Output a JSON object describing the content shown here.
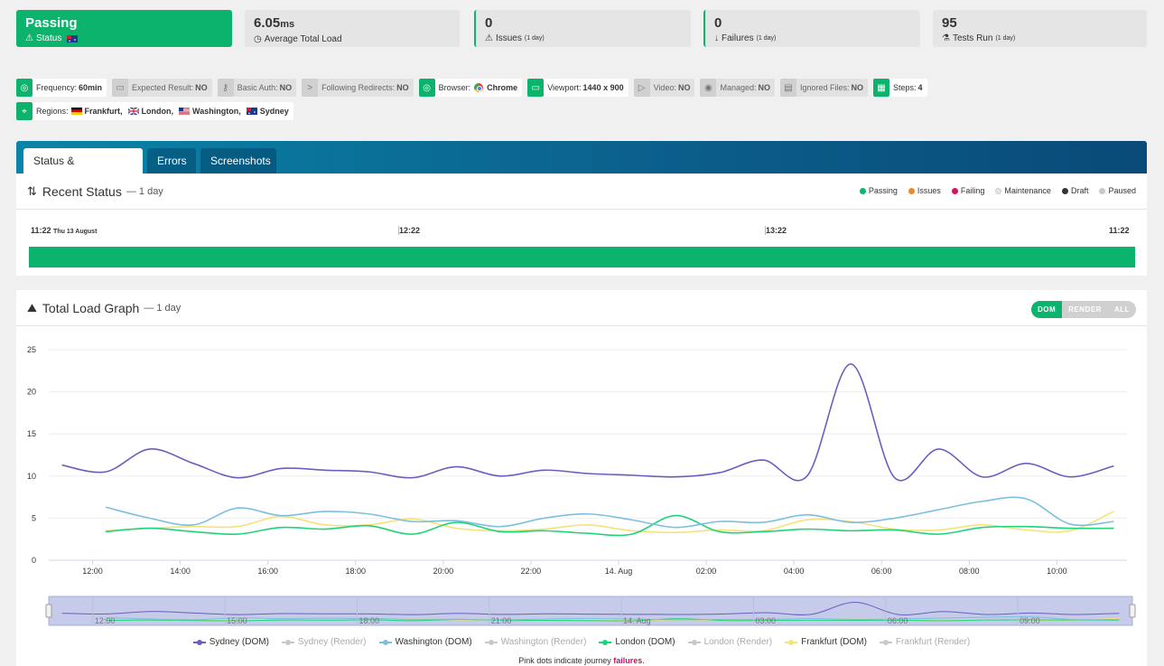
{
  "stats": {
    "status": {
      "value": "Passing",
      "label": "Status"
    },
    "load": {
      "value": "6.05",
      "unit": "ms",
      "label": "Average Total Load"
    },
    "issues": {
      "value": "0",
      "label": "Issues",
      "period": "(1 day)"
    },
    "failures": {
      "value": "0",
      "label": "Failures",
      "period": "(1 day)"
    },
    "tests": {
      "value": "95",
      "label": "Tests Run",
      "period": "(1 day)"
    }
  },
  "tags": {
    "frequency": {
      "label": "Frequency:",
      "value": "60min"
    },
    "expected": {
      "label": "Expected Result:",
      "value": "NO"
    },
    "basic_auth": {
      "label": "Basic Auth:",
      "value": "NO"
    },
    "redirects": {
      "label": "Following Redirects:",
      "value": "NO"
    },
    "browser": {
      "label": "Browser:",
      "value": "Chrome"
    },
    "viewport": {
      "label": "Viewport:",
      "value": "1440 x 900"
    },
    "video": {
      "label": "Video:",
      "value": "NO"
    },
    "managed": {
      "label": "Managed:",
      "value": "NO"
    },
    "ignored": {
      "label": "Ignored Files:",
      "value": "NO"
    },
    "steps": {
      "label": "Steps:",
      "value": "4"
    },
    "regions": {
      "label": "Regions:",
      "items": [
        "Frankfurt,",
        "London,",
        "Washington,",
        "Sydney"
      ]
    }
  },
  "tabs": [
    "Status & Performance",
    "Errors",
    "Screenshots"
  ],
  "recent_status": {
    "title": "Recent Status",
    "period": "— 1 day",
    "legend": [
      "Passing",
      "Issues",
      "Failing",
      "Maintenance",
      "Draft",
      "Paused"
    ],
    "ticks": [
      {
        "time": "11:22",
        "date": "Thu 13 August"
      },
      {
        "time": "12:22",
        "date": ""
      },
      {
        "time": "13:22",
        "date": ""
      },
      {
        "time": "11:22",
        "date": ""
      }
    ]
  },
  "load_graph": {
    "title": "Total Load Graph",
    "period": "— 1 day",
    "toggle": [
      "DOM",
      "RENDER",
      "ALL"
    ],
    "note_prefix": "Pink dots indicate journey ",
    "note_em": "failures",
    "note_suffix": "."
  },
  "colors": {
    "green": "#0bb36c",
    "sydney": "#6a5fc0",
    "washington": "#7cbfe0",
    "london": "#1fd37a",
    "frankfurt": "#f5e27a",
    "issues": "#e8892b",
    "failing": "#d4145a",
    "draft": "#333333",
    "paused": "#c8c8c8"
  },
  "chart_data": {
    "type": "line",
    "xlabels": [
      "12:00",
      "14:00",
      "16:00",
      "18:00",
      "20:00",
      "22:00",
      "14. Aug",
      "02:00",
      "04:00",
      "06:00",
      "08:00",
      "10:00"
    ],
    "navigator_labels": [
      "12:00",
      "15:00",
      "18:00",
      "21:00",
      "14. Aug",
      "03:00",
      "06:00",
      "09:00"
    ],
    "yticks": [
      0,
      5,
      10,
      15,
      20,
      25
    ],
    "ylim": [
      0,
      25
    ],
    "x_hours_from_start": true,
    "series": [
      {
        "name": "Sydney (DOM)",
        "color": "#6a5fc0",
        "visible": true,
        "points": [
          [
            -0.7,
            11.3
          ],
          [
            0.3,
            10.5
          ],
          [
            1.3,
            13.2
          ],
          [
            2.3,
            11.5
          ],
          [
            3.3,
            9.8
          ],
          [
            4.3,
            10.9
          ],
          [
            5.3,
            10.7
          ],
          [
            6.3,
            10.5
          ],
          [
            7.3,
            9.8
          ],
          [
            8.3,
            11.1
          ],
          [
            9.3,
            10.0
          ],
          [
            10.3,
            10.7
          ],
          [
            11.3,
            10.3
          ],
          [
            12.3,
            10.1
          ],
          [
            13.3,
            9.9
          ],
          [
            14.3,
            10.4
          ],
          [
            15.3,
            11.9
          ],
          [
            16.3,
            10.0
          ],
          [
            17.3,
            23.3
          ],
          [
            18.3,
            9.8
          ],
          [
            19.3,
            13.2
          ],
          [
            20.3,
            9.9
          ],
          [
            21.3,
            11.5
          ],
          [
            22.3,
            9.9
          ],
          [
            23.3,
            11.2
          ]
        ]
      },
      {
        "name": "Washington (DOM)",
        "color": "#7cbfe0",
        "visible": true,
        "points": [
          [
            0.3,
            6.3
          ],
          [
            1.3,
            5.0
          ],
          [
            2.3,
            4.2
          ],
          [
            3.3,
            6.2
          ],
          [
            4.3,
            5.3
          ],
          [
            5.3,
            5.8
          ],
          [
            6.3,
            5.5
          ],
          [
            7.3,
            4.6
          ],
          [
            8.3,
            4.7
          ],
          [
            9.3,
            4.0
          ],
          [
            10.3,
            5.0
          ],
          [
            11.3,
            5.5
          ],
          [
            12.3,
            4.8
          ],
          [
            13.3,
            3.9
          ],
          [
            14.3,
            4.6
          ],
          [
            15.3,
            4.5
          ],
          [
            16.3,
            5.4
          ],
          [
            17.3,
            4.5
          ],
          [
            18.3,
            5.0
          ],
          [
            19.3,
            6.0
          ],
          [
            20.3,
            7.0
          ],
          [
            21.3,
            7.3
          ],
          [
            22.3,
            4.3
          ],
          [
            23.3,
            4.6
          ]
        ]
      },
      {
        "name": "Washington (Render)",
        "color": "#c8c8c8",
        "visible": false,
        "points": []
      },
      {
        "name": "London (DOM)",
        "color": "#1fd37a",
        "visible": true,
        "points": [
          [
            0.3,
            3.4
          ],
          [
            1.3,
            3.8
          ],
          [
            2.3,
            3.4
          ],
          [
            3.3,
            3.1
          ],
          [
            4.3,
            3.9
          ],
          [
            5.3,
            3.7
          ],
          [
            6.3,
            4.1
          ],
          [
            7.3,
            3.1
          ],
          [
            8.3,
            4.5
          ],
          [
            9.3,
            3.4
          ],
          [
            10.3,
            3.5
          ],
          [
            11.3,
            3.2
          ],
          [
            12.3,
            3.1
          ],
          [
            13.3,
            5.3
          ],
          [
            14.3,
            3.4
          ],
          [
            15.3,
            3.4
          ],
          [
            16.3,
            3.7
          ],
          [
            17.3,
            3.5
          ],
          [
            18.3,
            3.6
          ],
          [
            19.3,
            3.1
          ],
          [
            20.3,
            3.9
          ],
          [
            21.3,
            4.0
          ],
          [
            22.3,
            3.8
          ],
          [
            23.3,
            3.8
          ]
        ]
      },
      {
        "name": "Frankfurt (DOM)",
        "color": "#f5e27a",
        "visible": true,
        "points": [
          [
            0.3,
            3.5
          ],
          [
            1.3,
            3.8
          ],
          [
            2.3,
            4.0
          ],
          [
            3.3,
            4.0
          ],
          [
            4.3,
            5.2
          ],
          [
            5.3,
            4.2
          ],
          [
            6.3,
            4.2
          ],
          [
            7.3,
            4.9
          ],
          [
            8.3,
            3.8
          ],
          [
            9.3,
            3.5
          ],
          [
            10.3,
            3.7
          ],
          [
            11.3,
            4.2
          ],
          [
            12.3,
            3.5
          ],
          [
            13.3,
            3.3
          ],
          [
            14.3,
            3.6
          ],
          [
            15.3,
            3.5
          ],
          [
            16.3,
            4.8
          ],
          [
            17.3,
            4.6
          ],
          [
            18.3,
            3.7
          ],
          [
            19.3,
            3.6
          ],
          [
            20.3,
            4.2
          ],
          [
            21.3,
            3.6
          ],
          [
            22.3,
            3.5
          ],
          [
            23.3,
            5.8
          ]
        ]
      }
    ],
    "legend": [
      {
        "name": "Sydney (DOM)",
        "color": "#6a5fc0",
        "dim": false
      },
      {
        "name": "Sydney (Render)",
        "color": "#c8c8c8",
        "dim": true
      },
      {
        "name": "Washington (DOM)",
        "color": "#7cbfe0",
        "dim": false
      },
      {
        "name": "Washington (Render)",
        "color": "#c8c8c8",
        "dim": true
      },
      {
        "name": "London (DOM)",
        "color": "#1fd37a",
        "dim": false
      },
      {
        "name": "London (Render)",
        "color": "#c8c8c8",
        "dim": true
      },
      {
        "name": "Frankfurt (DOM)",
        "color": "#f5e27a",
        "dim": false
      },
      {
        "name": "Frankfurt (Render)",
        "color": "#c8c8c8",
        "dim": true
      }
    ]
  }
}
